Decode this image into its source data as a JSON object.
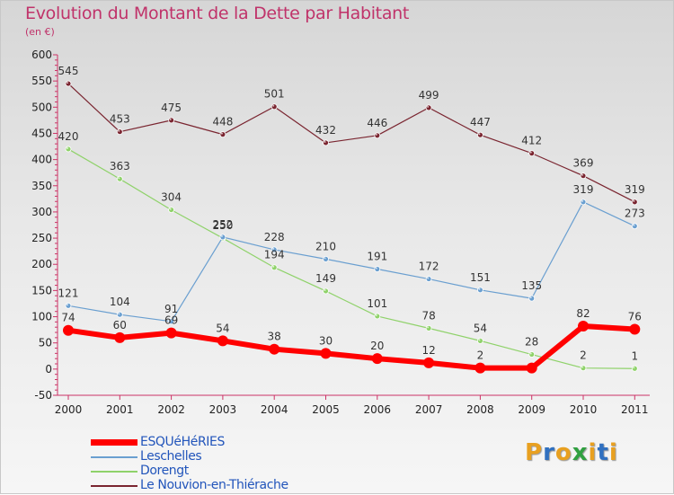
{
  "title": "Evolution du Montant de la Dette par Habitant",
  "subtitle": "(en €)",
  "logo": {
    "text": "Proxiti",
    "letter_colors": [
      "#e8a020",
      "#3070c0",
      "#e8a020",
      "#30a040",
      "#e8a020",
      "#3070c0",
      "#e8a020"
    ]
  },
  "chart_data": {
    "type": "line",
    "x": [
      "2000",
      "2001",
      "2002",
      "2003",
      "2004",
      "2005",
      "2006",
      "2007",
      "2008",
      "2009",
      "2010",
      "2011"
    ],
    "ylim": [
      -50,
      600
    ],
    "yticks": [
      -50,
      0,
      50,
      100,
      150,
      200,
      250,
      300,
      350,
      400,
      450,
      500,
      550,
      600
    ],
    "grid": false,
    "legend_position": "bottom-left",
    "series": [
      {
        "name": "ESQUéHéRIES",
        "color": "#ff0000",
        "values": [
          74,
          60,
          69,
          54,
          38,
          30,
          20,
          12,
          2,
          2,
          82,
          76
        ],
        "labels": [
          "74",
          "60",
          "69",
          "54",
          "38",
          "30",
          "20",
          "12",
          "2",
          "",
          "82",
          "76"
        ]
      },
      {
        "name": "Leschelles",
        "color": "#6a9fd0",
        "values": [
          121,
          104,
          91,
          252,
          228,
          210,
          191,
          172,
          151,
          135,
          319,
          273
        ],
        "labels": [
          "121",
          "104",
          "91",
          "252",
          "228",
          "210",
          "191",
          "172",
          "151",
          "135",
          "319",
          "273"
        ]
      },
      {
        "name": "Dorengt",
        "color": "#8fd26a",
        "values": [
          420,
          363,
          304,
          250,
          194,
          149,
          101,
          78,
          54,
          28,
          2,
          1
        ],
        "labels": [
          "420",
          "363",
          "304",
          "250",
          "194",
          "149",
          "101",
          "78",
          "54",
          "28",
          "2",
          "1"
        ]
      },
      {
        "name": "Le Nouvion-en-Thiérache",
        "color": "#7a2530",
        "values": [
          545,
          453,
          475,
          448,
          501,
          432,
          446,
          499,
          447,
          412,
          369,
          319
        ],
        "labels": [
          "545",
          "453",
          "475",
          "448",
          "501",
          "432",
          "446",
          "499",
          "447",
          "412",
          "369",
          "319"
        ]
      }
    ]
  }
}
